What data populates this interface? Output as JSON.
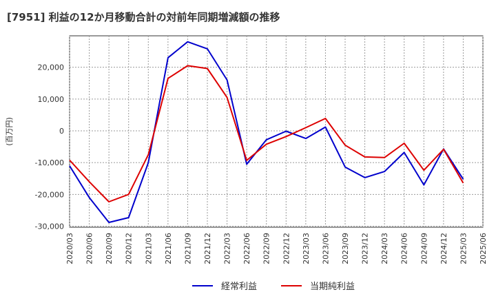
{
  "chart_data": {
    "type": "line",
    "title": "[7951]  利益の12か月移動合計の対前年同期増減額の推移",
    "ylabel": "(百万円)",
    "xlabel": "",
    "ylim": [
      -30000,
      30000
    ],
    "yticks": [
      20000,
      10000,
      0,
      -10000,
      -20000,
      -30000
    ],
    "ytick_labels": [
      "20,000",
      "10,000",
      "0",
      "-10,000",
      "-20,000",
      "-30,000"
    ],
    "x": [
      "2020/03",
      "2020/06",
      "2020/09",
      "2020/12",
      "2021/03",
      "2021/06",
      "2021/09",
      "2021/12",
      "2022/03",
      "2022/06",
      "2022/09",
      "2022/12",
      "2023/03",
      "2023/06",
      "2023/09",
      "2023/12",
      "2024/03",
      "2024/06",
      "2024/09",
      "2024/12",
      "2025/03",
      "2025/06"
    ],
    "series": [
      {
        "name": "経常利益",
        "color": "#0000cc",
        "values": [
          -11000,
          -21000,
          -28800,
          -27300,
          -10000,
          23000,
          28000,
          25800,
          16000,
          -10500,
          -2800,
          -100,
          -2400,
          1200,
          -11400,
          -14700,
          -12800,
          -6800,
          -17000,
          -5700,
          -15200,
          null
        ]
      },
      {
        "name": "当期純利益",
        "color": "#dd0000",
        "values": [
          -9200,
          -16000,
          -22300,
          -20000,
          -7500,
          16500,
          20500,
          19600,
          10500,
          -9300,
          -4200,
          -1800,
          1000,
          3900,
          -4500,
          -8200,
          -8400,
          -3900,
          -12400,
          -5800,
          -16400,
          null
        ]
      }
    ],
    "grid": true,
    "legend": "bottom-center"
  }
}
